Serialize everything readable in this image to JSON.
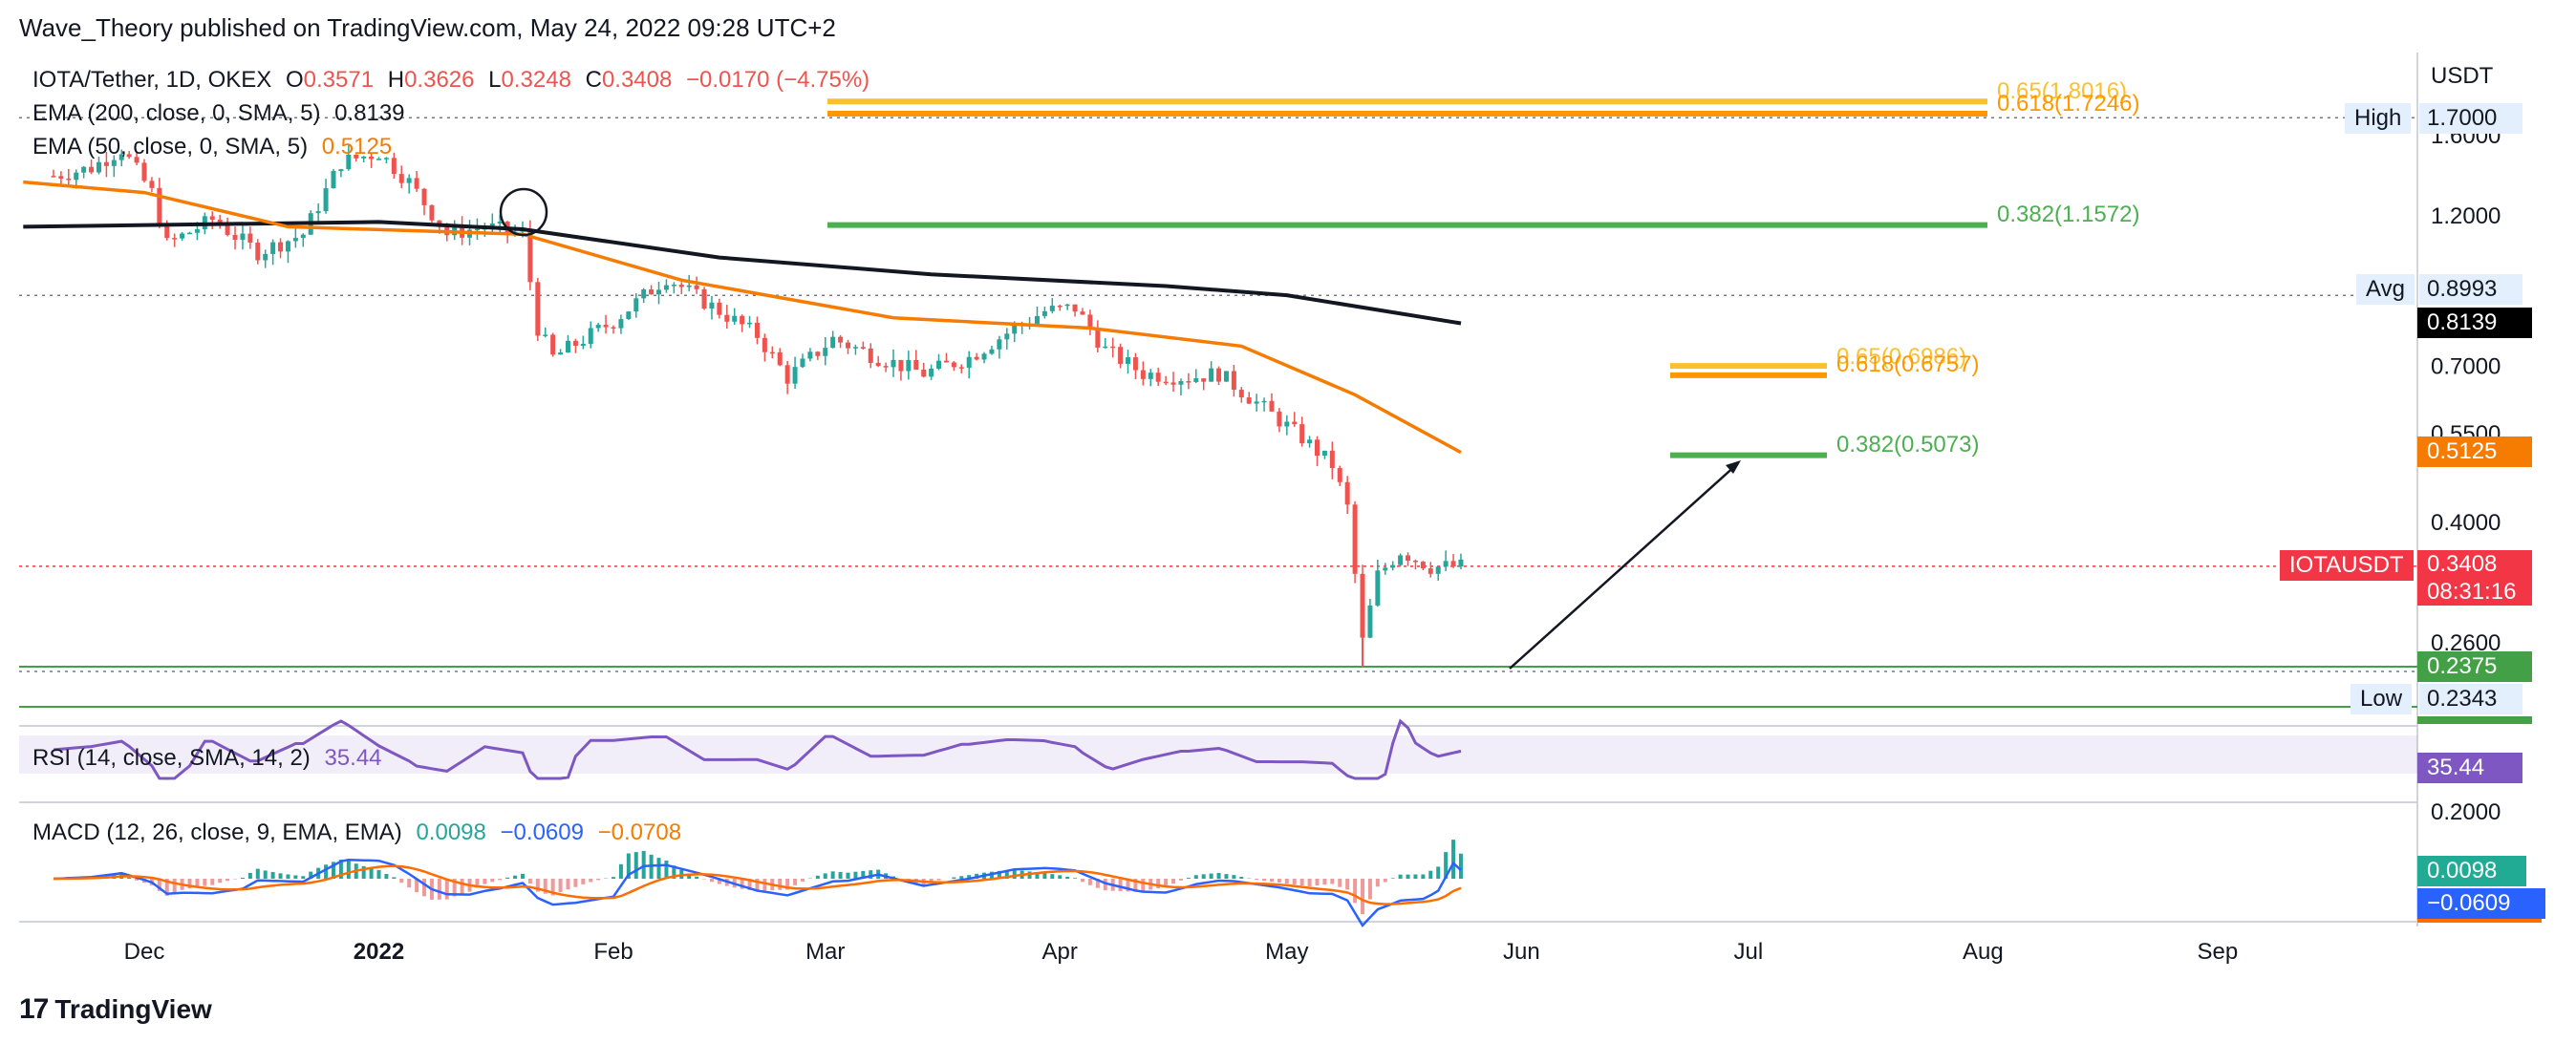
{
  "header": {
    "publisher": "Wave_Theory published on TradingView.com, May 24, 2022 09:28 UTC+2"
  },
  "legend": {
    "symbol": "IOTA/Tether, 1D, OKEX",
    "o_label": "O",
    "o_val": "0.3571",
    "h_label": "H",
    "h_val": "0.3626",
    "l_label": "L",
    "l_val": "0.3248",
    "c_label": "C",
    "c_val": "0.3408",
    "change": "−0.0170 (−4.75%)",
    "ema200_label": "EMA (200, close, 0, SMA, 5)",
    "ema200_val": "0.8139",
    "ema50_label": "EMA (50, close, 0, SMA, 5)",
    "ema50_val": "0.5125",
    "rsi_label": "RSI (14, close, SMA, 14, 2)",
    "rsi_val": "35.44",
    "macd_label": "MACD (12, 26, close, 9, EMA, EMA)",
    "macd_hist": "0.0098",
    "macd_line": "−0.0609",
    "macd_signal": "−0.0708"
  },
  "axis": {
    "currency": "USDT",
    "price_ticks": [
      "1.6000",
      "1.2000",
      "0.7000",
      "0.5500",
      "0.4000",
      "0.2600"
    ],
    "time_ticks": [
      "Dec",
      "2022",
      "Feb",
      "Mar",
      "Apr",
      "May",
      "Jun",
      "Jul",
      "Aug",
      "Sep"
    ],
    "macd_tick": "0.2000"
  },
  "price_labels": {
    "high_label": "High",
    "high_val": "1.7000",
    "avg_label": "Avg",
    "avg_val": "0.8993",
    "ema200_val": "0.8139",
    "ema50_val": "0.5125",
    "symbol_tag": "IOTAUSDT",
    "last_price": "0.3408",
    "countdown": "08:31:16",
    "support_val": "0.2375",
    "low_label": "Low",
    "low_val": "0.2343",
    "rsi_val": "35.44",
    "macd_hist_val": "0.0098",
    "macd_line_val": "−0.0609"
  },
  "fib_levels": {
    "upper_065": "0.65(1.8016)",
    "upper_0618": "0.618(1.7246)",
    "upper_0382": "0.382(1.1572)",
    "lower_065": "0.65(0.6986)",
    "lower_0618": "0.618(0.6757)",
    "lower_0382": "0.382(0.5073)"
  },
  "colors": {
    "up": "#26a69a",
    "down": "#ef5350",
    "ema200": "#131722",
    "ema50": "#f57c00",
    "fib_gold": "#fbc02d",
    "fib_orange": "#ff9800",
    "fib_green": "#4caf50",
    "rsi": "#7e57c2",
    "macd": "#2962ff",
    "signal": "#ff6d00"
  },
  "footer": {
    "brand": "TradingView"
  },
  "chart_data": {
    "type": "candlestick",
    "symbol": "IOTA/Tether",
    "interval": "1D",
    "exchange": "OKEX",
    "ylim": [
      0.2,
      2.0
    ],
    "scale": "log",
    "ohlc_last": {
      "open": 0.3571,
      "high": 0.3626,
      "low": 0.3248,
      "close": 0.3408
    },
    "series": [
      {
        "name": "EMA (200, close, 0, SMA, 5)",
        "last": 0.8139
      },
      {
        "name": "EMA (50, close, 0, SMA, 5)",
        "last": 0.5125
      }
    ],
    "close_path": [
      {
        "x": "Nov 19",
        "y": 1.38
      },
      {
        "x": "Nov 24",
        "y": 1.42
      },
      {
        "x": "Nov 28",
        "y": 1.52
      },
      {
        "x": "Dec 2",
        "y": 1.3
      },
      {
        "x": "Dec 4",
        "y": 1.08
      },
      {
        "x": "Dec 10",
        "y": 1.18
      },
      {
        "x": "Dec 16",
        "y": 1.05
      },
      {
        "x": "Dec 22",
        "y": 1.12
      },
      {
        "x": "Dec 27",
        "y": 1.45
      },
      {
        "x": "Jan 1",
        "y": 1.5
      },
      {
        "x": "Jan 5",
        "y": 1.35
      },
      {
        "x": "Jan 10",
        "y": 1.12
      },
      {
        "x": "Jan 15",
        "y": 1.15
      },
      {
        "x": "Jan 20",
        "y": 1.12
      },
      {
        "x": "Jan 22",
        "y": 0.8
      },
      {
        "x": "Jan 24",
        "y": 0.72
      },
      {
        "x": "Feb 1",
        "y": 0.82
      },
      {
        "x": "Feb 8",
        "y": 0.96
      },
      {
        "x": "Feb 13",
        "y": 0.88
      },
      {
        "x": "Feb 20",
        "y": 0.78
      },
      {
        "x": "Feb 24",
        "y": 0.67
      },
      {
        "x": "Mar 2",
        "y": 0.77
      },
      {
        "x": "Mar 8",
        "y": 0.72
      },
      {
        "x": "Mar 14",
        "y": 0.68
      },
      {
        "x": "Mar 20",
        "y": 0.72
      },
      {
        "x": "Mar 26",
        "y": 0.8
      },
      {
        "x": "Mar 30",
        "y": 0.85
      },
      {
        "x": "Apr 3",
        "y": 0.86
      },
      {
        "x": "Apr 7",
        "y": 0.74
      },
      {
        "x": "Apr 12",
        "y": 0.68
      },
      {
        "x": "Apr 18",
        "y": 0.67
      },
      {
        "x": "Apr 22",
        "y": 0.68
      },
      {
        "x": "Apr 28",
        "y": 0.6
      },
      {
        "x": "May 3",
        "y": 0.54
      },
      {
        "x": "May 7",
        "y": 0.49
      },
      {
        "x": "May 9",
        "y": 0.42
      },
      {
        "x": "May 11",
        "y": 0.26
      },
      {
        "x": "May 13",
        "y": 0.33
      },
      {
        "x": "May 16",
        "y": 0.36
      },
      {
        "x": "May 20",
        "y": 0.34
      },
      {
        "x": "May 24",
        "y": 0.3408
      }
    ],
    "ema200_path": [
      {
        "x": "Nov 15",
        "y": 1.15
      },
      {
        "x": "Jan 1",
        "y": 1.17
      },
      {
        "x": "Jan 20",
        "y": 1.14
      },
      {
        "x": "Feb 15",
        "y": 1.03
      },
      {
        "x": "Mar 15",
        "y": 0.97
      },
      {
        "x": "Apr 15",
        "y": 0.93
      },
      {
        "x": "May 1",
        "y": 0.9
      },
      {
        "x": "May 24",
        "y": 0.8139
      }
    ],
    "ema50_path": [
      {
        "x": "Nov 15",
        "y": 1.35
      },
      {
        "x": "Dec 1",
        "y": 1.3
      },
      {
        "x": "Dec 20",
        "y": 1.15
      },
      {
        "x": "Jan 20",
        "y": 1.12
      },
      {
        "x": "Feb 10",
        "y": 0.95
      },
      {
        "x": "Mar 10",
        "y": 0.83
      },
      {
        "x": "Apr 5",
        "y": 0.8
      },
      {
        "x": "Apr 25",
        "y": 0.75
      },
      {
        "x": "May 10",
        "y": 0.63
      },
      {
        "x": "May 24",
        "y": 0.5125
      }
    ],
    "horizontal_levels": [
      {
        "name": "High",
        "y": 1.7
      },
      {
        "name": "Avg",
        "y": 0.8993
      },
      {
        "name": "IOTAUSDT",
        "y": 0.3408
      },
      {
        "name": "support",
        "y": 0.2375
      },
      {
        "name": "Low",
        "y": 0.2343
      }
    ],
    "fibonacci": [
      {
        "label": "0.65(1.8016)",
        "y": 1.8016
      },
      {
        "label": "0.618(1.7246)",
        "y": 1.7246
      },
      {
        "label": "0.382(1.1572)",
        "y": 1.1572
      },
      {
        "label": "0.65(0.6986)",
        "y": 0.6986
      },
      {
        "label": "0.618(0.6757)",
        "y": 0.6757
      },
      {
        "label": "0.382(0.5073)",
        "y": 0.5073
      }
    ],
    "rsi": {
      "name": "RSI (14, close, SMA, 14, 2)",
      "last": 35.44
    },
    "macd": {
      "name": "MACD (12, 26, close, 9, EMA, EMA)",
      "histogram": 0.0098,
      "macd": -0.0609,
      "signal": -0.0708
    },
    "xlabel": "",
    "ylabel": "USDT",
    "x_ticks": [
      "Dec",
      "2022",
      "Feb",
      "Mar",
      "Apr",
      "May",
      "Jun",
      "Jul",
      "Aug",
      "Sep"
    ]
  }
}
